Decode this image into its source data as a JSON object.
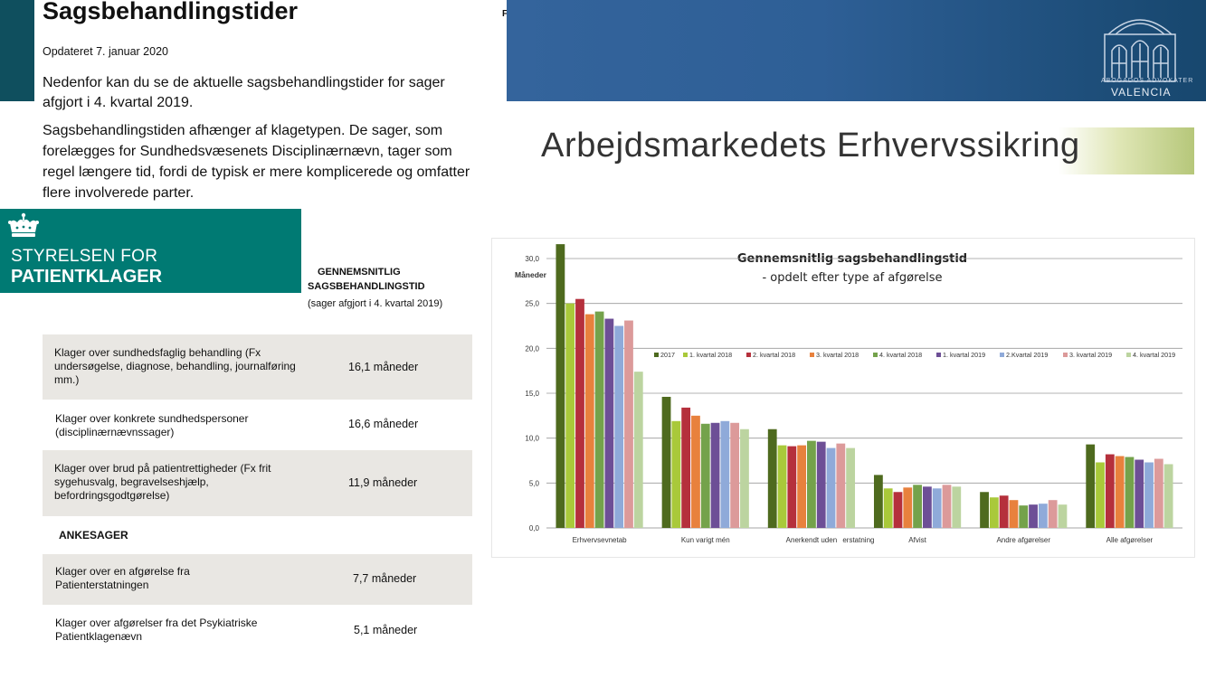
{
  "patient_panel": {
    "title": "Sagsbehandlingstider",
    "updated": "Opdateret 7. januar 2020",
    "intro1": "Nedenfor kan du se de aktuelle sagsbehandlingstider for sager afgjort i 4. kvartal 2019.",
    "intro2": "Sagsbehandlingstiden afhænger af klagetypen. De sager, som forelægges for Sundhedsvæsenets Disciplinærnævn, tager som regel længere tid, fordi de typisk er mere komplicerede og omfatter flere involverede parter.",
    "stray_char": "F",
    "logo_line1": "STYRELSEN FOR",
    "logo_line2": "PATIENTKLAGER",
    "table_header1": "GENNEMSNITLIG",
    "table_header2": "SAGSBEHANDLINGSTID",
    "table_header3": "(sager afgjort i 4. kvartal 2019)",
    "rows": [
      {
        "label": "Klager over sundhedsfaglig behandling (Fx undersøgelse, diagnose, behandling, journalføring mm.)",
        "value": "16,1 måneder"
      },
      {
        "label": "Klager over konkrete sundhedspersoner (disciplinærnævnssager)",
        "value": "16,6 måneder"
      },
      {
        "label": "Klager over brud på patientrettigheder (Fx frit sygehusvalg, begravelseshjælp, befordringsgodtgørelse)",
        "value": "11,9 måneder"
      },
      {
        "label": "Klager over en afgørelse fra Patienterstatningen",
        "value": "7,7 måneder"
      },
      {
        "label": "Klager over afgørelser fra det Psykiatriske Patientklagenævn",
        "value": "5,1 måneder"
      }
    ],
    "ankesager": "ANKESAGER"
  },
  "banner": {
    "small_text": "ABOGADOS ADVOKATER",
    "logo_text": "VALENCIA",
    "accent": "#2e5f96"
  },
  "aes_title": "Arbejdsmarkedets Erhvervssikring",
  "chart_data": {
    "type": "bar",
    "title": "Gennemsnitlig sagsbehandlingstid",
    "subtitle": "- opdelt efter type af afgørelse",
    "ylabel": "Måneder",
    "ylim": [
      0,
      30
    ],
    "yticks": [
      "30,0",
      "25,0",
      "20,0",
      "15,0",
      "10,0",
      "5,0",
      "0,0"
    ],
    "legend_position": "top",
    "categories": [
      "Erhvervsevnetab",
      "Kun varigt mén",
      "Anerkendt uden",
      "Afvist",
      "Andre afgørelser",
      "Alle afgørelser"
    ],
    "category_extra": "erstatning",
    "series": [
      {
        "name": "2017",
        "color": "#4e6a1e",
        "values": [
          31.6,
          14.6,
          11.0,
          5.9,
          4.0,
          9.3
        ]
      },
      {
        "name": "1. kvartal 2018",
        "color": "#a9c93a",
        "values": [
          25.0,
          11.9,
          9.2,
          4.4,
          3.4,
          7.3
        ]
      },
      {
        "name": "2. kvartal 2018",
        "color": "#b5303c",
        "values": [
          25.5,
          13.4,
          9.1,
          4.0,
          3.6,
          8.2
        ]
      },
      {
        "name": "3. kvartal 2018",
        "color": "#e8813d",
        "values": [
          23.8,
          12.5,
          9.2,
          4.5,
          3.1,
          8.0
        ]
      },
      {
        "name": "4. kvartal 2018",
        "color": "#74a24b",
        "values": [
          24.1,
          11.6,
          9.7,
          4.8,
          2.5,
          7.9
        ]
      },
      {
        "name": "1. kvartal 2019",
        "color": "#6d4f96",
        "values": [
          23.3,
          11.7,
          9.6,
          4.6,
          2.6,
          7.6
        ]
      },
      {
        "name": "2.Kvartal 2019",
        "color": "#8faad9",
        "values": [
          22.5,
          11.9,
          8.9,
          4.4,
          2.7,
          7.3
        ]
      },
      {
        "name": "3. kvartal 2019",
        "color": "#dc9a9a",
        "values": [
          23.1,
          11.7,
          9.4,
          4.8,
          3.1,
          7.7
        ]
      },
      {
        "name": "4. kvartal 2019",
        "color": "#bcd4a0",
        "values": [
          17.4,
          11.0,
          8.9,
          4.6,
          2.6,
          7.1
        ]
      }
    ]
  }
}
